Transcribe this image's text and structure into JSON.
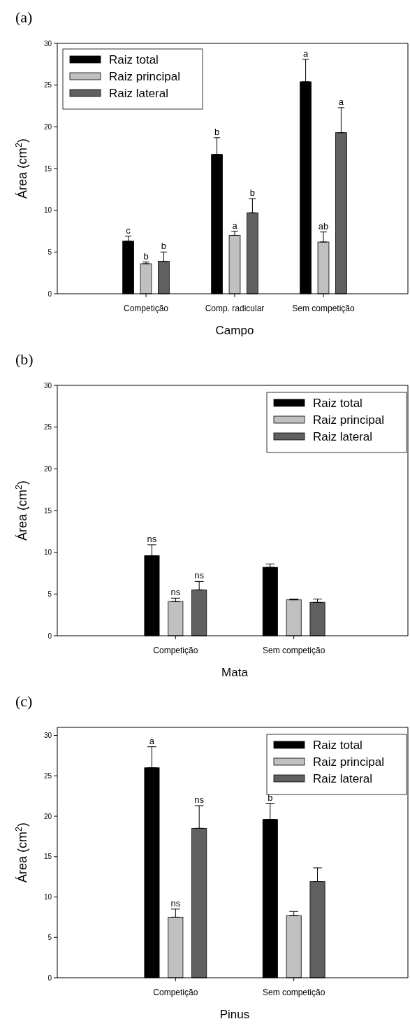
{
  "chart_data": [
    {
      "type": "bar",
      "title": "(a)",
      "xlabel": "Campo",
      "ylabel": "Área (cm$^{2}$)",
      "categories": [
        "Competição",
        "Comp. radicular",
        "Sem competição"
      ],
      "ylim": [
        0,
        30
      ],
      "yticks": [
        0,
        5,
        10,
        15,
        20,
        25,
        30
      ],
      "legend": "top left",
      "series": [
        {
          "name": "Raiz total",
          "color": "#000000",
          "values": [
            6.3,
            16.7,
            25.4
          ],
          "errors": [
            [
              6.3,
              6.9
            ],
            [
              16.7,
              18.7
            ],
            [
              25.4,
              28.1
            ]
          ],
          "value_labels": [
            "c",
            "b",
            "a"
          ]
        },
        {
          "name": "Raiz principal",
          "color": "#c0c0c0",
          "values": [
            3.6,
            7.0,
            6.2
          ],
          "errors": [
            [
              3.6,
              3.8
            ],
            [
              7.0,
              7.5
            ],
            [
              6.2,
              7.4
            ]
          ],
          "value_labels": [
            "b",
            "a",
            "ab"
          ]
        },
        {
          "name": "Raiz lateral",
          "color": "#606060",
          "values": [
            3.9,
            9.7,
            19.3
          ],
          "errors": [
            [
              3.9,
              5.0
            ],
            [
              9.7,
              11.4
            ],
            [
              19.3,
              22.3
            ]
          ],
          "value_labels": [
            "b",
            "b",
            "a"
          ]
        }
      ]
    },
    {
      "type": "bar",
      "title": "(b)",
      "xlabel": "Mata",
      "ylabel": "Área (cm$^{2}$)",
      "categories": [
        "Competição",
        "Sem competição"
      ],
      "ylim": [
        0,
        30
      ],
      "yticks": [
        0,
        5,
        10,
        15,
        20,
        25,
        30
      ],
      "legend": "top right",
      "series": [
        {
          "name": "Raiz total",
          "color": "#000000",
          "values": [
            9.6,
            8.2
          ],
          "errors": [
            [
              9.6,
              10.9
            ],
            [
              8.2,
              8.6
            ]
          ],
          "value_labels": [
            "ns",
            null
          ]
        },
        {
          "name": "Raiz principal",
          "color": "#c0c0c0",
          "values": [
            4.1,
            4.3
          ],
          "errors": [
            [
              4.1,
              4.5
            ],
            [
              4.3,
              4.4
            ]
          ],
          "value_labels": [
            "ns",
            null
          ]
        },
        {
          "name": "Raiz lateral",
          "color": "#606060",
          "values": [
            5.5,
            4.0
          ],
          "errors": [
            [
              5.5,
              6.5
            ],
            [
              4.0,
              4.4
            ]
          ],
          "value_labels": [
            "ns",
            null
          ]
        }
      ]
    },
    {
      "type": "bar",
      "title": "(c)",
      "xlabel": "Pinus",
      "ylabel": "Área (cm$^{2}$)",
      "categories": [
        "Competição",
        "Sem competição"
      ],
      "ylim": [
        0,
        31
      ],
      "yticks": [
        0,
        5,
        10,
        15,
        20,
        25,
        30
      ],
      "legend": "top right",
      "series": [
        {
          "name": "Raiz total",
          "color": "#000000",
          "values": [
            26.0,
            19.6
          ],
          "errors": [
            [
              26.0,
              28.6
            ],
            [
              19.6,
              21.6
            ]
          ],
          "value_labels": [
            "a",
            "b"
          ]
        },
        {
          "name": "Raiz principal",
          "color": "#c0c0c0",
          "values": [
            7.5,
            7.7
          ],
          "errors": [
            [
              7.5,
              8.5
            ],
            [
              7.7,
              8.2
            ]
          ],
          "value_labels": [
            "ns",
            null
          ]
        },
        {
          "name": "Raiz lateral",
          "color": "#606060",
          "values": [
            18.5,
            11.9
          ],
          "errors": [
            [
              18.5,
              21.3
            ],
            [
              11.9,
              13.6
            ]
          ],
          "value_labels": [
            "ns",
            null
          ]
        }
      ]
    }
  ]
}
